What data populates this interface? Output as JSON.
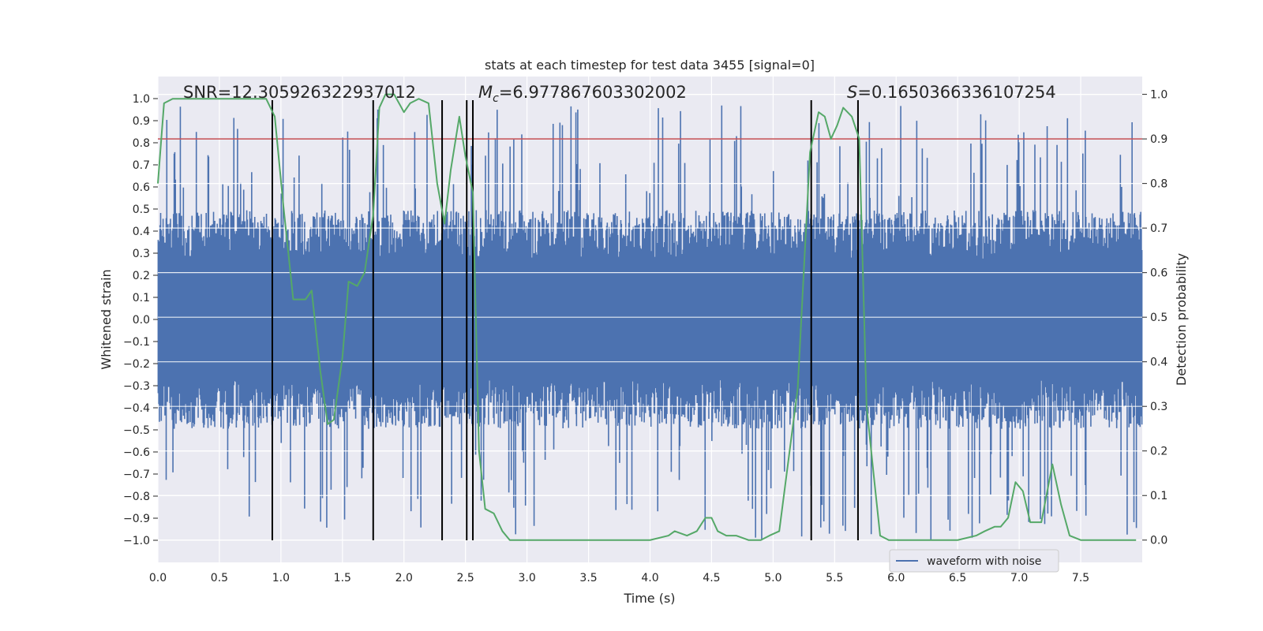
{
  "chart_data": {
    "type": "line",
    "title": "stats at each timestep for test data 3455 [signal=0]",
    "xlabel": "Time (s)",
    "ylabel": "Whitened strain",
    "y2label": "Detection probability",
    "xlim": [
      0.0,
      8.0
    ],
    "ylim": [
      -1.1,
      1.1
    ],
    "y2lim": [
      -0.05,
      1.04
    ],
    "xticks": [
      0.0,
      0.5,
      1.0,
      1.5,
      2.0,
      2.5,
      3.0,
      3.5,
      4.0,
      4.5,
      5.0,
      5.5,
      6.0,
      6.5,
      7.0,
      7.5
    ],
    "xtick_labels": [
      "0.0",
      "0.5",
      "1.0",
      "1.5",
      "2.0",
      "2.5",
      "3.0",
      "3.5",
      "4.0",
      "4.5",
      "5.0",
      "5.5",
      "6.0",
      "6.5",
      "7.0",
      "7.5"
    ],
    "yticks": [
      -1.0,
      -0.9,
      -0.8,
      -0.7,
      -0.6,
      -0.5,
      -0.4,
      -0.3,
      -0.2,
      -0.1,
      0.0,
      0.1,
      0.2,
      0.3,
      0.4,
      0.5,
      0.6,
      0.7,
      0.8,
      0.9,
      1.0
    ],
    "ytick_labels": [
      "−1.0",
      "−0.9",
      "−0.8",
      "−0.7",
      "−0.6",
      "−0.5",
      "−0.4",
      "−0.3",
      "−0.2",
      "−0.1",
      "0.0",
      "0.1",
      "0.2",
      "0.3",
      "0.4",
      "0.5",
      "0.6",
      "0.7",
      "0.8",
      "0.9",
      "1.0"
    ],
    "y2ticks": [
      0.0,
      0.1,
      0.2,
      0.3,
      0.4,
      0.5,
      0.6,
      0.7,
      0.8,
      0.9,
      1.0
    ],
    "y2tick_labels": [
      "0.0",
      "0.1",
      "0.2",
      "0.3",
      "0.4",
      "0.5",
      "0.6",
      "0.7",
      "0.8",
      "0.9",
      "1.0"
    ],
    "annotations": {
      "snr": "SNR=12.305926322937012",
      "mc_symbol": "M",
      "mc_sub": "c",
      "mc_value": "=6.977867603302002",
      "s_symbol": "S",
      "s_value": "=0.1650366336107254"
    },
    "threshold_y2": 0.9,
    "vlines_x": [
      0.93,
      1.75,
      2.31,
      2.51,
      2.56,
      5.31,
      5.69
    ],
    "vline_range_y": [
      -1.0,
      1.0
    ],
    "legend": {
      "label": "waveform with noise",
      "position": "lower-right"
    },
    "waveform": {
      "name": "waveform with noise",
      "note": "dense noisy whitened strain samples spanning approx -1.0 to 1.0",
      "x_start": 0.0,
      "x_end": 8.0,
      "core_amplitude": 0.45,
      "peak_max": 0.97,
      "peak_min": -1.0
    },
    "series": [
      {
        "name": "detection probability",
        "axis": "y2",
        "x": [
          0.0,
          0.05,
          0.12,
          0.25,
          0.5,
          0.7,
          0.88,
          0.95,
          1.02,
          1.1,
          1.2,
          1.25,
          1.32,
          1.38,
          1.43,
          1.5,
          1.55,
          1.62,
          1.68,
          1.75,
          1.8,
          1.85,
          1.92,
          2.0,
          2.05,
          2.12,
          2.2,
          2.27,
          2.33,
          2.38,
          2.45,
          2.5,
          2.56,
          2.61,
          2.66,
          2.73,
          2.8,
          2.86,
          2.95,
          3.1,
          3.3,
          3.5,
          3.8,
          4.0,
          4.15,
          4.2,
          4.3,
          4.38,
          4.45,
          4.5,
          4.55,
          4.62,
          4.7,
          4.8,
          4.9,
          4.97,
          5.05,
          5.2,
          5.3,
          5.37,
          5.42,
          5.47,
          5.52,
          5.57,
          5.64,
          5.7,
          5.76,
          5.82,
          5.87,
          5.94,
          6.0,
          6.2,
          6.5,
          6.65,
          6.72,
          6.8,
          6.85,
          6.91,
          6.97,
          7.03,
          7.09,
          7.18,
          7.27,
          7.34,
          7.41,
          7.5,
          7.6,
          7.8,
          7.95
        ],
        "values": [
          0.8,
          0.98,
          0.99,
          0.99,
          0.99,
          0.99,
          0.99,
          0.95,
          0.75,
          0.54,
          0.54,
          0.56,
          0.38,
          0.26,
          0.27,
          0.41,
          0.58,
          0.57,
          0.6,
          0.73,
          0.97,
          1.0,
          1.0,
          0.96,
          0.98,
          0.99,
          0.98,
          0.8,
          0.71,
          0.83,
          0.95,
          0.86,
          0.78,
          0.2,
          0.07,
          0.06,
          0.02,
          0.0,
          0.0,
          0.0,
          0.0,
          0.0,
          0.0,
          0.0,
          0.01,
          0.02,
          0.01,
          0.02,
          0.05,
          0.05,
          0.02,
          0.01,
          0.01,
          0.0,
          0.0,
          0.01,
          0.02,
          0.34,
          0.87,
          0.96,
          0.95,
          0.9,
          0.93,
          0.97,
          0.95,
          0.9,
          0.3,
          0.14,
          0.01,
          0.0,
          0.0,
          0.0,
          0.0,
          0.01,
          0.02,
          0.03,
          0.03,
          0.05,
          0.13,
          0.11,
          0.04,
          0.04,
          0.17,
          0.08,
          0.01,
          0.0,
          0.0,
          0.0,
          0.0
        ]
      }
    ]
  }
}
